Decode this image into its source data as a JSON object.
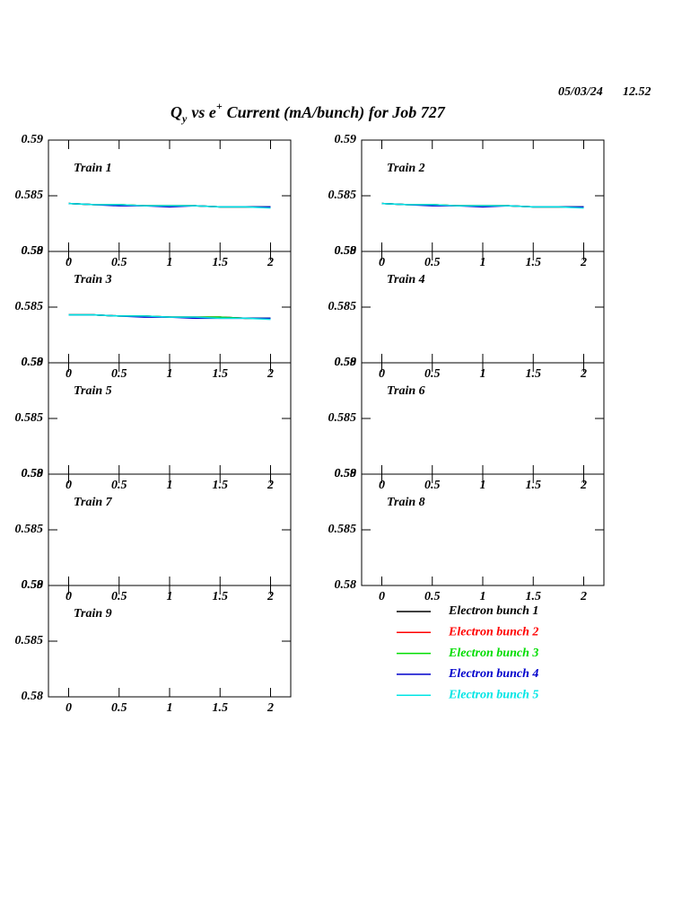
{
  "header": {
    "date": "05/03/24",
    "time": "12.52",
    "title": [
      "Q",
      "y",
      "vs e",
      "+",
      "Current (mA/bunch) for Job 727"
    ]
  },
  "chart_data": [
    {
      "type": "line",
      "title": "Train 1",
      "xlim": [
        -0.2,
        2.2
      ],
      "xticks": [
        0,
        0.5,
        1,
        1.5,
        2
      ],
      "ylim": [
        0.58,
        0.59
      ],
      "yticks": [
        0.58,
        0.585,
        0.59
      ],
      "x": [
        0,
        0.25,
        0.5,
        0.75,
        1,
        1.25,
        1.5,
        1.75,
        2
      ],
      "series": [
        {
          "name": "Electron bunch 1",
          "color": "#000000",
          "values": [
            0.5843,
            0.5842,
            0.5842,
            0.5841,
            0.5841,
            0.5841,
            0.584,
            0.584,
            0.584
          ]
        },
        {
          "name": "Electron bunch 2",
          "color": "#ff0000",
          "values": [
            0.5843,
            0.5842,
            0.5842,
            0.5841,
            0.5841,
            0.5841,
            0.584,
            0.584,
            0.584
          ]
        },
        {
          "name": "Electron bunch 3",
          "color": "#00dd00",
          "values": [
            0.5843,
            0.5842,
            0.5842,
            0.5841,
            0.5841,
            0.5841,
            0.584,
            0.584,
            0.584
          ]
        },
        {
          "name": "Electron bunch 4",
          "color": "#0000cc",
          "values": [
            0.5843,
            0.5842,
            0.5841,
            0.5841,
            0.584,
            0.5841,
            0.584,
            0.584,
            0.584
          ]
        },
        {
          "name": "Electron bunch 5",
          "color": "#00e5e5",
          "values": [
            0.5843,
            0.5842,
            0.5842,
            0.5841,
            0.5841,
            0.5841,
            0.584,
            0.584,
            0.5839
          ]
        }
      ]
    },
    {
      "type": "line",
      "title": "Train 2",
      "xlim": [
        -0.2,
        2.2
      ],
      "xticks": [
        0,
        0.5,
        1,
        1.5,
        2
      ],
      "ylim": [
        0.58,
        0.59
      ],
      "yticks": [
        0.58,
        0.585,
        0.59
      ],
      "x": [
        0,
        0.25,
        0.5,
        0.75,
        1,
        1.25,
        1.5,
        1.75,
        2
      ],
      "series": [
        {
          "color": "#000000",
          "values": [
            0.5843,
            0.5842,
            0.5842,
            0.5841,
            0.5841,
            0.5841,
            0.584,
            0.584,
            0.584
          ]
        },
        {
          "color": "#ff0000",
          "values": [
            0.5843,
            0.5842,
            0.5842,
            0.5841,
            0.5841,
            0.5841,
            0.584,
            0.584,
            0.584
          ]
        },
        {
          "color": "#00dd00",
          "values": [
            0.5843,
            0.5842,
            0.5842,
            0.5841,
            0.5841,
            0.5841,
            0.584,
            0.584,
            0.584
          ]
        },
        {
          "color": "#0000cc",
          "values": [
            0.5843,
            0.5842,
            0.5841,
            0.5841,
            0.584,
            0.5841,
            0.584,
            0.584,
            0.584
          ]
        },
        {
          "color": "#00e5e5",
          "values": [
            0.5843,
            0.5842,
            0.5842,
            0.5841,
            0.5841,
            0.5841,
            0.584,
            0.584,
            0.5839
          ]
        }
      ]
    },
    {
      "type": "line",
      "title": "Train 3",
      "xlim": [
        -0.2,
        2.2
      ],
      "xticks": [
        0,
        0.5,
        1,
        1.5,
        2
      ],
      "ylim": [
        0.58,
        0.59
      ],
      "yticks": [
        0.58,
        0.585,
        0.59
      ],
      "x": [
        0,
        0.25,
        0.5,
        0.75,
        1,
        1.25,
        1.5,
        1.75,
        2
      ],
      "series": [
        {
          "color": "#000000",
          "values": [
            0.5843,
            0.5843,
            0.5842,
            0.5842,
            0.5841,
            0.5841,
            0.5841,
            0.584,
            0.584
          ]
        },
        {
          "color": "#ff0000",
          "values": [
            0.5843,
            0.5843,
            0.5842,
            0.5842,
            0.5841,
            0.5841,
            0.5841,
            0.584,
            0.584
          ]
        },
        {
          "color": "#00dd00",
          "values": [
            0.5843,
            0.5843,
            0.5842,
            0.5842,
            0.5841,
            0.5841,
            0.5841,
            0.584,
            0.584
          ]
        },
        {
          "color": "#0000cc",
          "values": [
            0.5843,
            0.5843,
            0.5842,
            0.5841,
            0.5841,
            0.584,
            0.584,
            0.584,
            0.584
          ]
        },
        {
          "color": "#00e5e5",
          "values": [
            0.5843,
            0.5843,
            0.5842,
            0.5842,
            0.5841,
            0.5841,
            0.584,
            0.584,
            0.5839
          ]
        }
      ]
    },
    {
      "type": "line",
      "title": "Train 4",
      "xlim": [
        -0.2,
        2.2
      ],
      "xticks": [
        0,
        0.5,
        1,
        1.5,
        2
      ],
      "ylim": [
        0.58,
        0.59
      ],
      "yticks": [
        0.58,
        0.585,
        0.59
      ],
      "series": []
    },
    {
      "type": "line",
      "title": "Train 5",
      "xlim": [
        -0.2,
        2.2
      ],
      "xticks": [
        0,
        0.5,
        1,
        1.5,
        2
      ],
      "ylim": [
        0.58,
        0.59
      ],
      "yticks": [
        0.58,
        0.585,
        0.59
      ],
      "series": []
    },
    {
      "type": "line",
      "title": "Train 6",
      "xlim": [
        -0.2,
        2.2
      ],
      "xticks": [
        0,
        0.5,
        1,
        1.5,
        2
      ],
      "ylim": [
        0.58,
        0.59
      ],
      "yticks": [
        0.58,
        0.585,
        0.59
      ],
      "series": []
    },
    {
      "type": "line",
      "title": "Train 7",
      "xlim": [
        -0.2,
        2.2
      ],
      "xticks": [
        0,
        0.5,
        1,
        1.5,
        2
      ],
      "ylim": [
        0.58,
        0.59
      ],
      "yticks": [
        0.58,
        0.585,
        0.59
      ],
      "series": []
    },
    {
      "type": "line",
      "title": "Train 8",
      "xlim": [
        -0.2,
        2.2
      ],
      "xticks": [
        0,
        0.5,
        1,
        1.5,
        2
      ],
      "ylim": [
        0.58,
        0.59
      ],
      "yticks": [
        0.58,
        0.585,
        0.59
      ],
      "series": []
    },
    {
      "type": "line",
      "title": "Train 9",
      "xlim": [
        -0.2,
        2.2
      ],
      "xticks": [
        0,
        0.5,
        1,
        1.5,
        2
      ],
      "ylim": [
        0.58,
        0.59
      ],
      "yticks": [
        0.58,
        0.585,
        0.59
      ],
      "series": []
    }
  ]
}
